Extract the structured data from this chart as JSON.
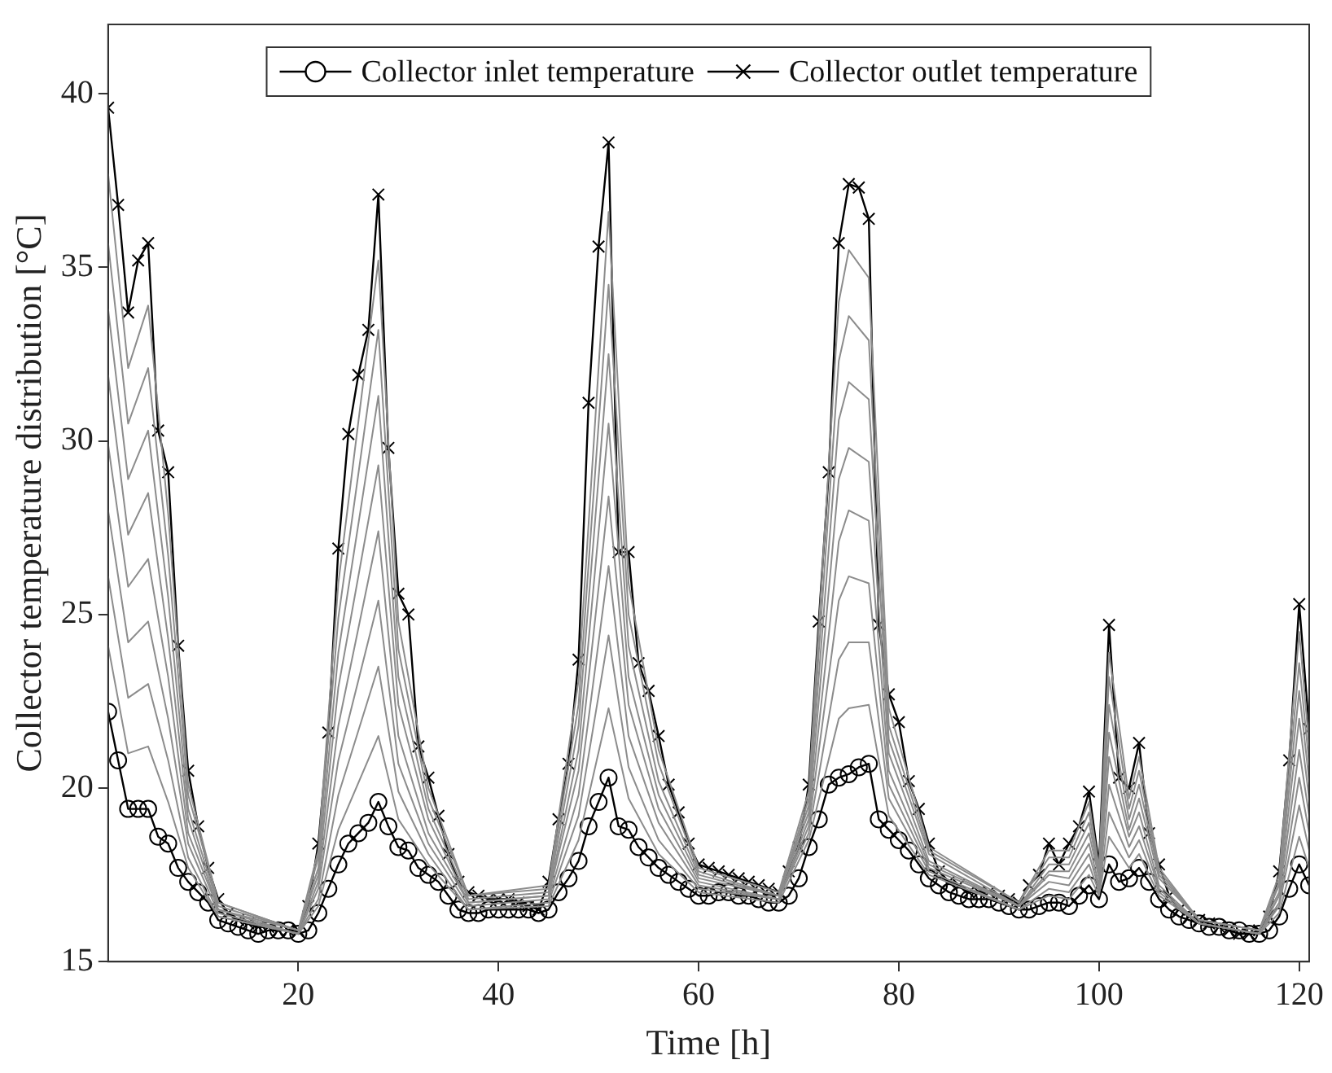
{
  "chart_data": {
    "type": "line",
    "xlabel": "Time [h]",
    "ylabel": "Collector temperature distribution [°C]",
    "xlim": [
      1,
      121
    ],
    "xticks": [
      20,
      40,
      60,
      80,
      100,
      120
    ],
    "ylim": [
      15,
      42
    ],
    "yticks": [
      15,
      20,
      25,
      30,
      35,
      40
    ],
    "grid": false,
    "legend": "top",
    "marker": "none",
    "line_style": "solid",
    "x": [
      1,
      2,
      3,
      4,
      5,
      6,
      7,
      8,
      9,
      10,
      11,
      12,
      13,
      14,
      15,
      16,
      17,
      18,
      19,
      20,
      21,
      22,
      23,
      24,
      25,
      26,
      27,
      28,
      29,
      30,
      31,
      32,
      33,
      34,
      35,
      36,
      37,
      38,
      39,
      40,
      41,
      42,
      43,
      44,
      45,
      46,
      47,
      48,
      49,
      50,
      51,
      52,
      53,
      54,
      55,
      56,
      57,
      58,
      59,
      60,
      61,
      62,
      63,
      64,
      65,
      66,
      67,
      68,
      69,
      70,
      71,
      72,
      73,
      74,
      75,
      76,
      77,
      78,
      79,
      80,
      81,
      82,
      83,
      84,
      85,
      86,
      87,
      88,
      89,
      90,
      91,
      92,
      93,
      94,
      95,
      96,
      97,
      98,
      99,
      100,
      101,
      102,
      103,
      104,
      105,
      106,
      107,
      108,
      109,
      110,
      111,
      112,
      113,
      114,
      115,
      116,
      117,
      118,
      119,
      120,
      121
    ],
    "series": [
      {
        "color": "#8c8c8c",
        "x": [
          1,
          3,
          5,
          7,
          9,
          12,
          20,
          22,
          24,
          28,
          30,
          33,
          37,
          45,
          48,
          51,
          53,
          56,
          60,
          68,
          71,
          74,
          75,
          77,
          79,
          83,
          92,
          95,
          97,
          99,
          100,
          101,
          103,
          104,
          106,
          110,
          116,
          118,
          120,
          121
        ],
        "values": [
          24.1,
          21.0,
          21.2,
          19.6,
          17.7,
          16.3,
          15.8,
          16.6,
          18.8,
          21.5,
          19.1,
          17.8,
          16.5,
          16.6,
          18.5,
          22.3,
          19.7,
          18.1,
          17.0,
          16.7,
          18.5,
          22.0,
          22.3,
          22.4,
          19.2,
          17.5,
          16.5,
          16.9,
          16.8,
          17.5,
          16.9,
          18.6,
          17.7,
          18.1,
          16.9,
          16.1,
          15.8,
          16.4,
          18.6,
          17.7
        ]
      },
      {
        "color": "#8c8c8c",
        "x": [
          1,
          3,
          5,
          7,
          9,
          12,
          20,
          22,
          24,
          28,
          30,
          33,
          37,
          45,
          48,
          51,
          53,
          56,
          60,
          68,
          71,
          74,
          75,
          77,
          79,
          83,
          92,
          95,
          97,
          99,
          100,
          101,
          103,
          104,
          106,
          110,
          116,
          118,
          120,
          121
        ],
        "values": [
          26.1,
          22.6,
          23.0,
          20.8,
          18.0,
          16.3,
          15.8,
          16.8,
          19.8,
          23.5,
          19.9,
          18.1,
          16.5,
          16.7,
          19.2,
          24.4,
          20.6,
          18.5,
          17.1,
          16.8,
          18.7,
          23.7,
          24.2,
          24.2,
          19.7,
          17.6,
          16.5,
          17.1,
          17.0,
          17.8,
          17.0,
          19.3,
          18.0,
          18.5,
          17.0,
          16.1,
          15.8,
          16.6,
          19.5,
          18.2
        ]
      },
      {
        "color": "#8c8c8c",
        "x": [
          1,
          3,
          5,
          7,
          9,
          12,
          20,
          22,
          24,
          28,
          30,
          33,
          37,
          45,
          48,
          51,
          53,
          56,
          60,
          68,
          71,
          74,
          75,
          77,
          79,
          83,
          92,
          95,
          97,
          99,
          100,
          101,
          103,
          104,
          106,
          110,
          116,
          118,
          120,
          121
        ],
        "values": [
          28.0,
          24.2,
          24.8,
          22.0,
          18.4,
          16.4,
          15.8,
          17.1,
          20.8,
          25.4,
          20.7,
          18.4,
          16.6,
          16.8,
          19.8,
          26.4,
          21.5,
          19.0,
          17.2,
          16.8,
          18.9,
          25.4,
          26.1,
          25.9,
          20.1,
          17.7,
          16.6,
          17.3,
          17.2,
          18.1,
          17.1,
          20.1,
          18.3,
          18.9,
          17.1,
          16.1,
          15.8,
          16.7,
          20.3,
          18.7
        ]
      },
      {
        "color": "#8c8c8c",
        "x": [
          1,
          3,
          5,
          7,
          9,
          12,
          20,
          22,
          24,
          28,
          30,
          33,
          37,
          45,
          48,
          51,
          53,
          56,
          60,
          68,
          71,
          74,
          75,
          77,
          79,
          83,
          92,
          95,
          97,
          99,
          100,
          101,
          103,
          104,
          106,
          110,
          116,
          118,
          120,
          121
        ],
        "values": [
          29.9,
          25.8,
          26.6,
          23.2,
          18.7,
          16.5,
          15.8,
          17.3,
          21.8,
          27.4,
          21.5,
          18.7,
          16.7,
          16.9,
          20.5,
          28.4,
          22.4,
          19.4,
          17.3,
          16.8,
          19.1,
          27.1,
          28.0,
          27.7,
          20.5,
          17.8,
          16.6,
          17.5,
          17.4,
          18.4,
          17.2,
          20.9,
          18.6,
          19.3,
          17.2,
          16.1,
          15.8,
          16.9,
          21.1,
          19.2
        ]
      },
      {
        "color": "#8c8c8c",
        "x": [
          1,
          3,
          5,
          7,
          9,
          12,
          20,
          22,
          24,
          28,
          30,
          33,
          37,
          45,
          48,
          51,
          53,
          56,
          60,
          68,
          71,
          74,
          75,
          77,
          79,
          83,
          92,
          95,
          97,
          99,
          100,
          101,
          103,
          104,
          106,
          110,
          116,
          118,
          120,
          121
        ],
        "values": [
          31.9,
          27.3,
          28.5,
          24.3,
          19.1,
          16.5,
          15.9,
          17.5,
          22.9,
          29.3,
          22.4,
          19.1,
          16.7,
          16.9,
          21.1,
          30.5,
          23.2,
          19.8,
          17.4,
          16.9,
          19.3,
          28.9,
          29.8,
          29.4,
          21.0,
          17.9,
          16.6,
          17.6,
          17.6,
          18.7,
          17.4,
          21.6,
          18.8,
          19.7,
          17.4,
          16.2,
          15.9,
          17.0,
          22.0,
          19.7
        ]
      },
      {
        "color": "#8c8c8c",
        "x": [
          1,
          3,
          5,
          7,
          9,
          12,
          20,
          22,
          24,
          28,
          30,
          33,
          37,
          45,
          48,
          51,
          53,
          56,
          60,
          68,
          71,
          74,
          75,
          77,
          79,
          83,
          92,
          95,
          97,
          99,
          100,
          101,
          103,
          104,
          106,
          110,
          116,
          118,
          120,
          121
        ],
        "values": [
          33.8,
          28.9,
          30.3,
          25.5,
          19.4,
          16.6,
          15.9,
          17.7,
          23.9,
          31.3,
          23.2,
          19.4,
          16.8,
          17.0,
          21.8,
          32.5,
          24.1,
          20.2,
          17.5,
          16.9,
          19.5,
          30.6,
          31.7,
          31.2,
          21.4,
          18.1,
          16.6,
          17.8,
          17.8,
          19.0,
          17.5,
          22.4,
          19.1,
          20.1,
          17.5,
          16.2,
          15.9,
          17.2,
          22.8,
          20.2
        ]
      },
      {
        "color": "#8c8c8c",
        "x": [
          1,
          3,
          5,
          7,
          9,
          12,
          20,
          22,
          24,
          28,
          30,
          33,
          37,
          45,
          48,
          51,
          53,
          56,
          60,
          68,
          71,
          74,
          75,
          77,
          79,
          83,
          92,
          95,
          97,
          99,
          100,
          101,
          103,
          104,
          106,
          110,
          116,
          118,
          120,
          121
        ],
        "values": [
          35.7,
          30.5,
          32.1,
          26.7,
          19.8,
          16.7,
          15.9,
          18.0,
          24.9,
          33.2,
          24.0,
          19.7,
          16.9,
          17.1,
          22.4,
          34.5,
          25.0,
          20.7,
          17.6,
          16.9,
          19.7,
          32.3,
          33.6,
          32.9,
          21.8,
          18.2,
          16.7,
          18.0,
          18.0,
          19.3,
          17.6,
          23.2,
          19.4,
          20.5,
          17.6,
          16.2,
          15.9,
          17.3,
          23.6,
          20.7
        ]
      },
      {
        "color": "#8c8c8c",
        "x": [
          1,
          3,
          5,
          7,
          9,
          12,
          20,
          22,
          24,
          28,
          30,
          33,
          37,
          45,
          48,
          51,
          53,
          56,
          60,
          68,
          71,
          74,
          75,
          77,
          79,
          83,
          92,
          95,
          97,
          99,
          100,
          101,
          103,
          104,
          106,
          110,
          116,
          118,
          120,
          121
        ],
        "values": [
          37.7,
          32.1,
          33.9,
          27.9,
          20.1,
          16.7,
          15.9,
          18.2,
          25.9,
          35.2,
          24.8,
          20.0,
          16.9,
          17.2,
          23.1,
          36.6,
          25.9,
          21.1,
          17.7,
          17.0,
          19.9,
          34.0,
          35.5,
          34.7,
          22.3,
          18.3,
          16.7,
          18.2,
          18.2,
          19.6,
          17.7,
          23.9,
          19.7,
          20.9,
          17.7,
          16.2,
          15.9,
          17.5,
          24.5,
          21.2
        ]
      },
      {
        "name": "Collector inlet temperature",
        "color": "#000000",
        "marker": "circle",
        "values": [
          22.2,
          20.8,
          19.4,
          19.4,
          19.4,
          18.6,
          18.4,
          17.7,
          17.3,
          17.0,
          16.7,
          16.2,
          16.1,
          16.0,
          15.9,
          15.8,
          15.9,
          15.9,
          15.9,
          15.8,
          15.9,
          16.4,
          17.1,
          17.8,
          18.4,
          18.7,
          19.0,
          19.6,
          18.9,
          18.3,
          18.2,
          17.7,
          17.5,
          17.3,
          16.9,
          16.5,
          16.4,
          16.4,
          16.5,
          16.5,
          16.5,
          16.5,
          16.5,
          16.4,
          16.5,
          17.0,
          17.4,
          17.9,
          18.9,
          19.6,
          20.3,
          18.9,
          18.8,
          18.3,
          18.0,
          17.7,
          17.5,
          17.3,
          17.1,
          16.9,
          16.9,
          17.0,
          17.0,
          16.9,
          16.9,
          16.8,
          16.7,
          16.7,
          16.9,
          17.4,
          18.3,
          19.1,
          20.1,
          20.3,
          20.4,
          20.6,
          20.7,
          19.1,
          18.8,
          18.5,
          18.2,
          17.8,
          17.4,
          17.2,
          17.0,
          16.9,
          16.8,
          16.8,
          16.8,
          16.7,
          16.6,
          16.5,
          16.5,
          16.6,
          16.7,
          16.7,
          16.6,
          16.9,
          17.2,
          16.8,
          17.8,
          17.3,
          17.4,
          17.7,
          17.3,
          16.8,
          16.5,
          16.3,
          16.2,
          16.1,
          16.0,
          16.0,
          15.9,
          15.9,
          15.8,
          15.8,
          15.9,
          16.3,
          17.1,
          17.8,
          17.2
        ]
      },
      {
        "name": "Collector outlet temperature",
        "color": "#000000",
        "marker": "cross",
        "values": [
          39.6,
          36.8,
          33.7,
          35.2,
          35.7,
          30.3,
          29.1,
          24.1,
          20.5,
          18.9,
          17.7,
          16.8,
          16.4,
          16.2,
          16.1,
          16.0,
          16.0,
          15.9,
          15.9,
          15.9,
          16.6,
          18.4,
          21.6,
          26.9,
          30.2,
          31.9,
          33.2,
          37.1,
          29.8,
          25.6,
          25.0,
          21.2,
          20.3,
          19.2,
          18.1,
          17.3,
          17.0,
          16.9,
          16.8,
          16.8,
          16.8,
          16.7,
          16.6,
          16.5,
          17.3,
          19.1,
          20.7,
          23.7,
          31.1,
          35.6,
          38.6,
          26.8,
          26.8,
          23.6,
          22.8,
          21.5,
          20.1,
          19.3,
          18.4,
          17.8,
          17.7,
          17.6,
          17.5,
          17.4,
          17.3,
          17.2,
          17.1,
          17.0,
          17.6,
          18.3,
          20.1,
          24.8,
          29.1,
          35.7,
          37.4,
          37.3,
          36.4,
          24.7,
          22.7,
          21.9,
          20.2,
          19.4,
          18.4,
          17.6,
          17.3,
          17.2,
          17.0,
          17.0,
          17.0,
          16.9,
          16.8,
          16.7,
          17.2,
          17.5,
          18.4,
          17.8,
          18.4,
          18.9,
          19.9,
          17.8,
          24.7,
          20.3,
          20.0,
          21.3,
          18.7,
          17.8,
          16.9,
          16.5,
          16.3,
          16.2,
          16.1,
          16.0,
          15.9,
          15.8,
          15.8,
          15.9,
          16.3,
          17.6,
          20.8,
          25.3,
          21.7
        ]
      }
    ]
  }
}
